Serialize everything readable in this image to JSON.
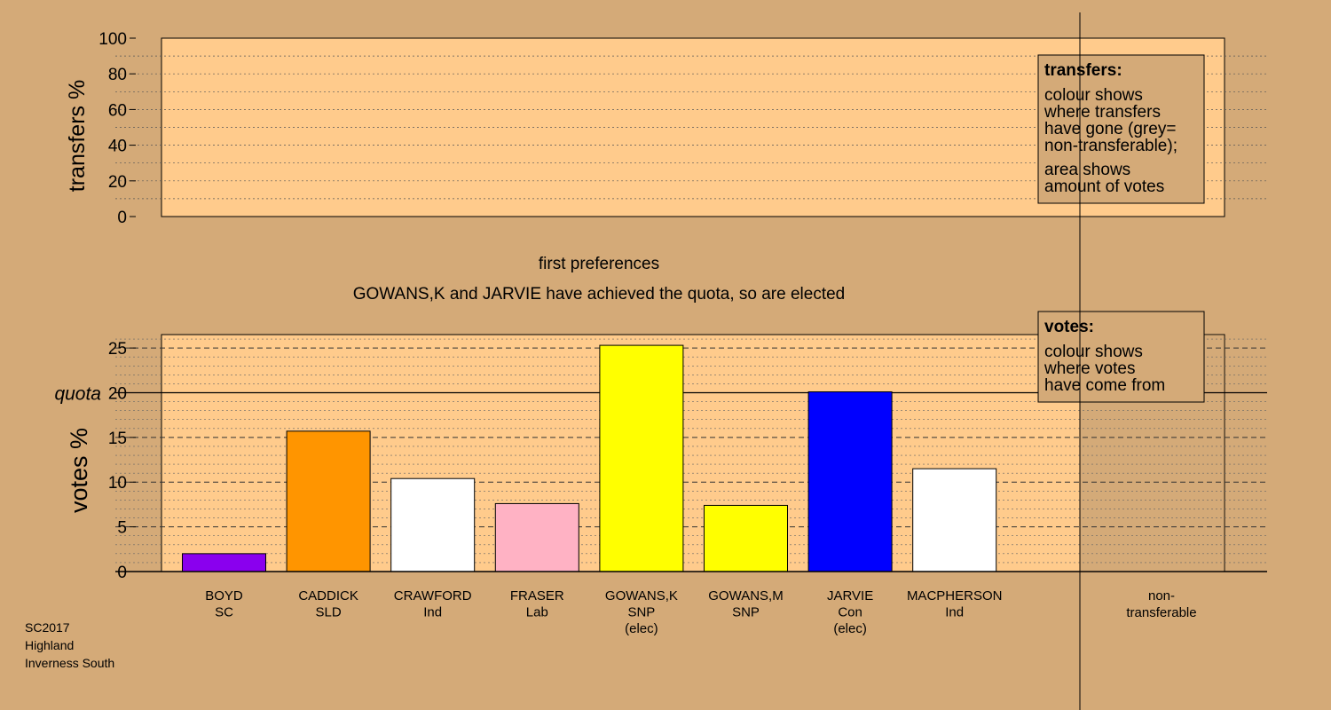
{
  "chart_data": [
    {
      "type": "bar",
      "ylabel": "transfers %",
      "ylim": [
        0,
        100
      ],
      "yticks": [
        0,
        20,
        40,
        60,
        80,
        100
      ],
      "minor_step": 10,
      "values": [],
      "legend": {
        "title": "transfers:",
        "lines_a": [
          "colour shows",
          "where transfers",
          "have gone (grey=",
          "non-transferable);"
        ],
        "lines_b": [
          "area shows",
          "amount of votes"
        ],
        "placement": "top-right"
      }
    },
    {
      "type": "bar",
      "ylabel": "votes %",
      "ylim": [
        0,
        26.5
      ],
      "yticks": [
        0,
        5,
        10,
        15,
        20,
        25
      ],
      "minor_step": 1,
      "quota": 20,
      "quota_label": "quota",
      "categories": [
        "BOYD",
        "CADDICK",
        "CRAWFORD",
        "FRASER",
        "GOWANS,K",
        "GOWANS,M",
        "JARVIE",
        "MACPHERSON"
      ],
      "parties": [
        "SC",
        "SLD",
        "Ind",
        "Lab",
        "SNP",
        "SNP",
        "Con",
        "Ind"
      ],
      "notes": [
        "",
        "",
        "",
        "",
        "(elec)",
        "",
        "(elec)",
        ""
      ],
      "values": [
        2.0,
        15.7,
        10.4,
        7.6,
        25.3,
        7.4,
        20.1,
        11.5
      ],
      "colors": [
        "#8a00ee",
        "#ff9500",
        "#ffffff",
        "#ffb2c4",
        "#ffff00",
        "#ffff00",
        "#0000ff",
        "#ffffff"
      ],
      "nontransferable_label": [
        "non-",
        "transferable"
      ],
      "legend": {
        "title": "votes:",
        "lines_a": [
          "colour shows",
          "where votes",
          "have come from"
        ],
        "placement": "top-right"
      }
    }
  ],
  "stage_title": "first preferences",
  "stage_subtitle": "GOWANS,K and JARVIE have achieved the quota, so are elected",
  "footer": [
    "SC2017",
    "Highland",
    "Inverness South"
  ],
  "colors": {
    "page_bg": "#d4aa78",
    "panel_bg": "#ffcb8c",
    "nontransferable_bg": "#d4aa78"
  }
}
